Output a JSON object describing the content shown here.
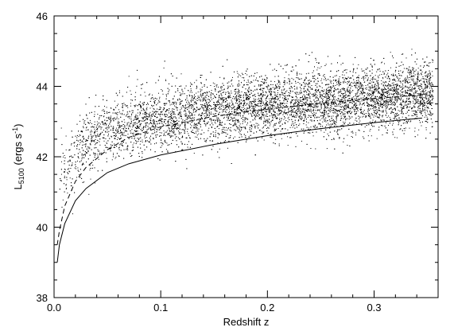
{
  "chart_data": {
    "type": "scatter",
    "title": "",
    "xlabel": "Redshift z",
    "ylabel": {
      "base": "L",
      "subscript": "5100",
      "unit_open": " (ergs s",
      "unit_power": "-1",
      "unit_close": ")"
    },
    "xlim": [
      0.0,
      0.36
    ],
    "ylim": [
      38,
      46
    ],
    "x_ticks": [
      0.0,
      0.1,
      0.2,
      0.3
    ],
    "x_tick_labels": [
      "0.0",
      "0.1",
      "0.2",
      "0.3"
    ],
    "x_minor_step": 0.02,
    "y_ticks": [
      38,
      40,
      42,
      44,
      46
    ],
    "y_tick_labels": [
      "38",
      "40",
      "42",
      "44",
      "46"
    ],
    "y_minor_step": 0.5,
    "grid": false,
    "legend": "none",
    "series": [
      {
        "style": "points",
        "color": "#000000",
        "approx_count": 9000,
        "z_range": [
          0.005,
          0.355
        ],
        "luminosity_trend": {
          "z": [
            0.01,
            0.02,
            0.03,
            0.05,
            0.08,
            0.1,
            0.15,
            0.2,
            0.25,
            0.3,
            0.35
          ],
          "mean": [
            41.6,
            42.1,
            42.4,
            42.75,
            43.0,
            43.1,
            43.3,
            43.45,
            43.55,
            43.7,
            43.8
          ],
          "scatter": 0.45
        }
      },
      {
        "style": "dashed",
        "color": "#000000",
        "x": [
          0.003,
          0.005,
          0.01,
          0.02,
          0.03,
          0.05,
          0.07,
          0.1,
          0.15,
          0.2,
          0.25,
          0.3,
          0.35
        ],
        "y": [
          39.5,
          39.9,
          40.6,
          41.3,
          41.7,
          42.2,
          42.55,
          42.85,
          43.15,
          43.35,
          43.52,
          43.65,
          43.78
        ]
      },
      {
        "style": "solid",
        "color": "#000000",
        "x": [
          0.003,
          0.005,
          0.01,
          0.02,
          0.03,
          0.05,
          0.07,
          0.1,
          0.15,
          0.2,
          0.25,
          0.3,
          0.345
        ],
        "y": [
          39.0,
          39.5,
          40.1,
          40.75,
          41.1,
          41.55,
          41.8,
          42.05,
          42.35,
          42.6,
          42.8,
          42.97,
          43.1
        ]
      }
    ]
  }
}
